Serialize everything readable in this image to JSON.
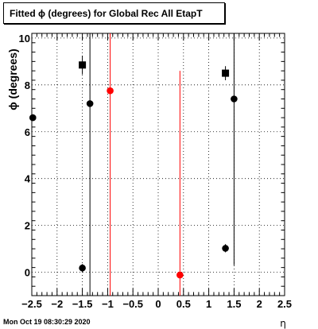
{
  "title": "Fitted ϕ (degrees) for Global Rec All EtapT",
  "timestamp": "Mon Oct 19 08:30:29 2020",
  "chart_data": {
    "type": "scatter",
    "title": "Fitted ϕ (degrees) for Global Rec All EtapT",
    "xlabel": "η",
    "ylabel": "ϕ (degrees)",
    "xlim": [
      -2.5,
      2.5
    ],
    "ylim": [
      -1,
      10.2
    ],
    "grid": true,
    "x_ticks": [
      -2.5,
      -2,
      -1.5,
      -1,
      -0.5,
      0,
      0.5,
      1,
      1.5,
      2,
      2.5
    ],
    "x_tick_labels": [
      "−2.5",
      "−2",
      "−1.5",
      "−1",
      "−0.5",
      "0",
      "0.5",
      "1",
      "1.5",
      "2",
      "2.5"
    ],
    "y_ticks": [
      0,
      2,
      4,
      6,
      8,
      10
    ],
    "y_tick_labels": [
      "0",
      "2",
      "4",
      "6",
      "8",
      "10"
    ],
    "colors": {
      "black": "#000000",
      "red": "#ff0000"
    },
    "points": [
      {
        "x": -2.48,
        "y": 6.6,
        "err_lo": 6.6,
        "err_hi": 6.6,
        "marker": "circle",
        "color": "#000000"
      },
      {
        "x": -1.5,
        "y": 8.85,
        "err_lo": 8.45,
        "err_hi": 9.25,
        "marker": "square",
        "color": "#000000"
      },
      {
        "x": -1.5,
        "y": 0.18,
        "err_lo": 0.0,
        "err_hi": 0.35,
        "marker": "circle",
        "color": "#000000"
      },
      {
        "x": -1.35,
        "y": 7.2,
        "err_lo": -1.0,
        "err_hi": 10.2,
        "marker": "circle",
        "color": "#000000"
      },
      {
        "x": -0.95,
        "y": 7.75,
        "err_lo": -1.0,
        "err_hi": 10.2,
        "marker": "circle",
        "color": "#ff0000"
      },
      {
        "x": 0.43,
        "y": -0.12,
        "err_lo": -1.0,
        "err_hi": 8.6,
        "marker": "circle",
        "color": "#ff0000"
      },
      {
        "x": 1.33,
        "y": 8.5,
        "err_lo": 8.2,
        "err_hi": 8.8,
        "marker": "square",
        "color": "#000000"
      },
      {
        "x": 1.33,
        "y": 1.02,
        "err_lo": 0.85,
        "err_hi": 1.2,
        "marker": "circle",
        "color": "#000000"
      },
      {
        "x": 1.5,
        "y": 7.4,
        "err_lo": 0.3,
        "err_hi": 10.2,
        "marker": "circle",
        "color": "#000000"
      }
    ]
  }
}
